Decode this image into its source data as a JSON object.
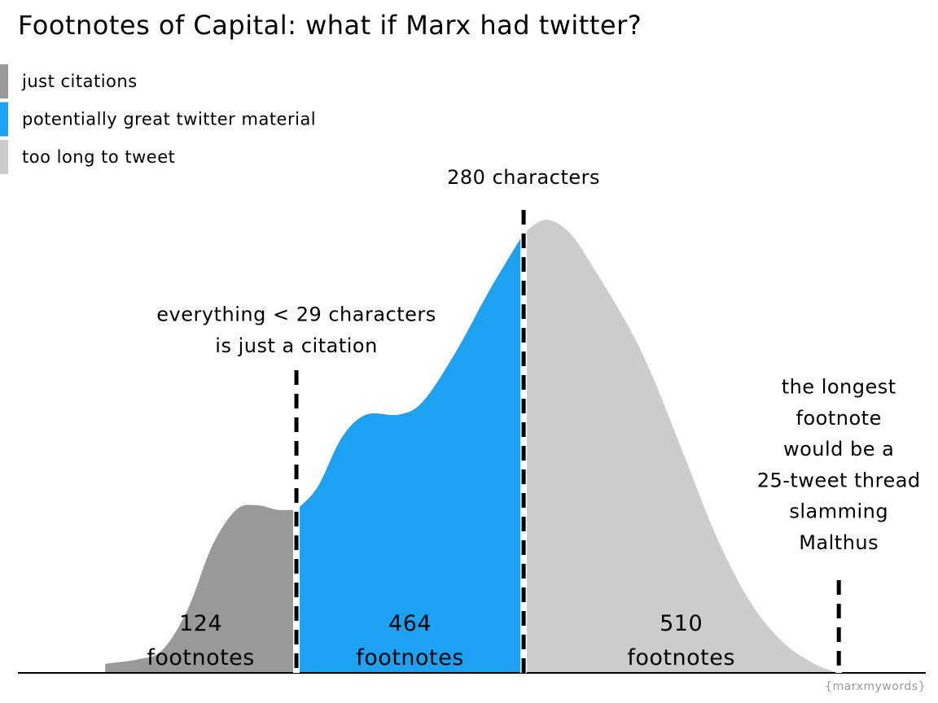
{
  "chart_data": {
    "type": "area",
    "title": "Footnotes of Capital: what if Marx had twitter?",
    "source": "{marxmywords}",
    "log_x": true,
    "xlim": [
      1.8,
      15500
    ],
    "ylim": [
      0,
      1
    ],
    "legend": "top-left",
    "series": [
      {
        "name": "just citations",
        "color": "#999999",
        "x": [
          4.3,
          6.0,
          7.6,
          9.8,
          12.5,
          15.9,
          19.5,
          23.9,
          29
        ],
        "values": [
          0.02,
          0.03,
          0.05,
          0.14,
          0.28,
          0.36,
          0.37,
          0.36,
          0.36
        ],
        "count": 124,
        "count_label": "footnotes"
      },
      {
        "name": "potentially great twitter material",
        "color": "#1da1f2",
        "x": [
          29,
          35.8,
          45.7,
          58.3,
          80.8,
          103,
          143,
          197,
          280
        ],
        "values": [
          0.36,
          0.41,
          0.52,
          0.57,
          0.57,
          0.6,
          0.71,
          0.84,
          0.97
        ],
        "count": 464,
        "count_label": "footnotes"
      },
      {
        "name": "too long to tweet",
        "color": "#cccccc",
        "x": [
          280,
          349,
          445,
          568,
          786,
          1003,
          1389,
          1922,
          2662,
          3683,
          5099,
          6507
        ],
        "values": [
          0.97,
          1.0,
          0.97,
          0.89,
          0.77,
          0.66,
          0.48,
          0.3,
          0.16,
          0.07,
          0.02,
          0.0
        ],
        "count": 510,
        "count_label": "footnotes"
      }
    ],
    "annotations": [
      {
        "x": 29,
        "text": [
          "everything < 29 characters",
          "is just a citation"
        ]
      },
      {
        "x": 280,
        "text": [
          "280 characters"
        ]
      },
      {
        "x": 6507,
        "text": [
          "the longest",
          "footnote",
          "would be a",
          "25-tweet thread",
          "slamming",
          "Malthus"
        ]
      }
    ]
  }
}
